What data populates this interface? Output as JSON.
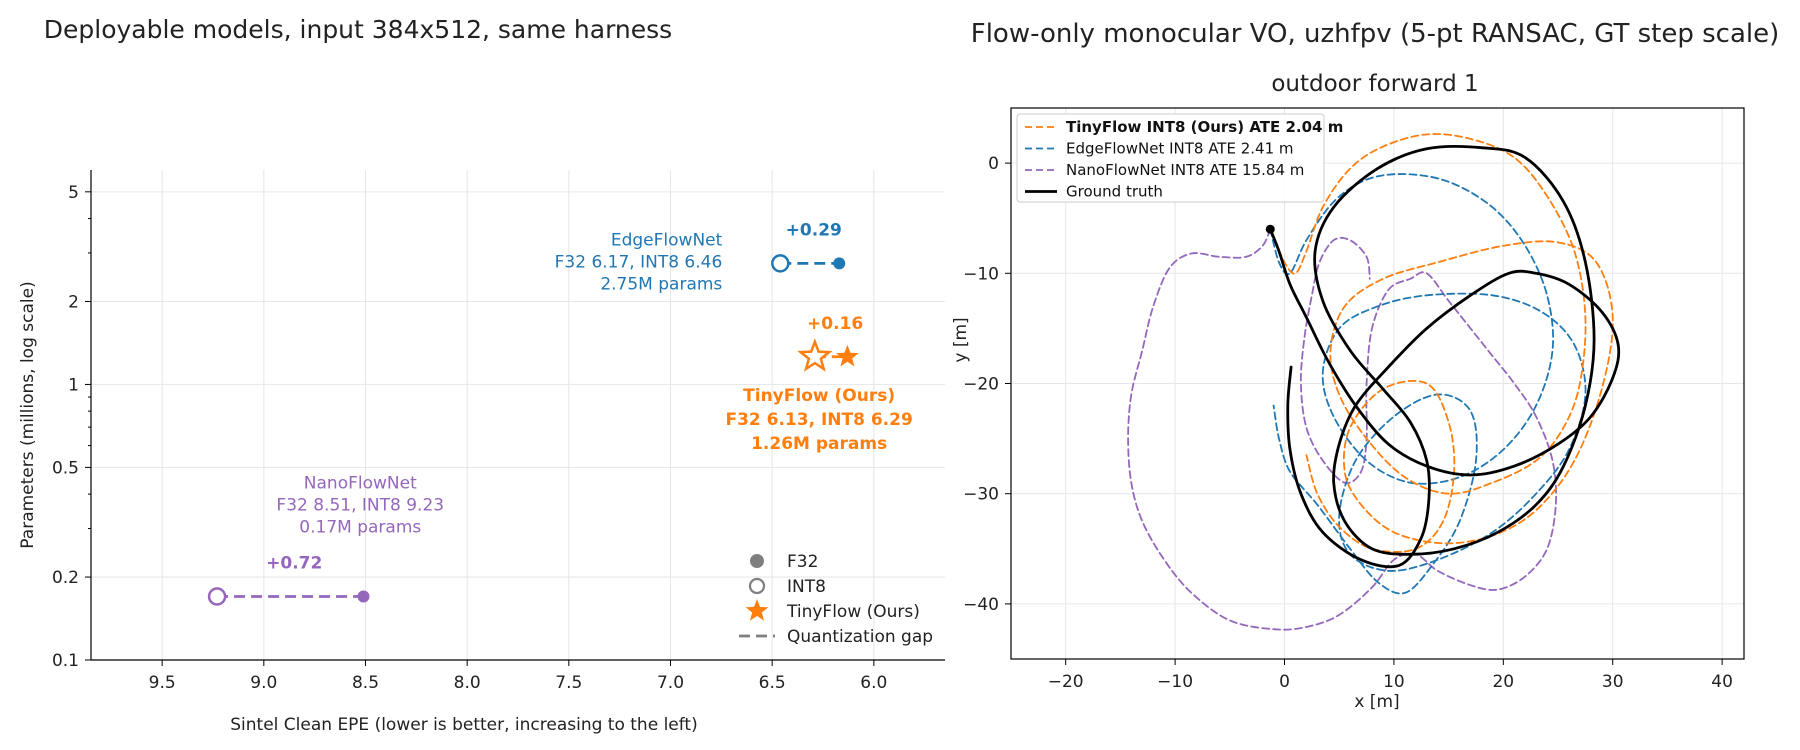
{
  "chart_data": [
    {
      "type": "scatter",
      "title": "Deployable models, input 384x512, same harness",
      "xlabel": "Sintel Clean EPE (lower is better, increasing to the left)",
      "ylabel": "Parameters (millions, log scale)",
      "xlim": [
        9.85,
        5.65
      ],
      "ylim": [
        0.1,
        6.0
      ],
      "yscale": "log",
      "x_inverted": true,
      "grid": true,
      "xticks": [
        9.5,
        9.0,
        8.5,
        8.0,
        7.5,
        7.0,
        6.5,
        6.0
      ],
      "xtick_labels": [
        "9.5",
        "9.0",
        "8.5",
        "8.0",
        "7.5",
        "7.0",
        "6.5",
        "6.0"
      ],
      "yticks": [
        0.1,
        0.2,
        0.5,
        1,
        2,
        5
      ],
      "ytick_labels": [
        "0.1",
        "0.2",
        "0.5",
        "1",
        "2",
        "5"
      ],
      "legend": {
        "position": "lower-right",
        "entries": [
          {
            "label": "F32",
            "marker": "filled-circle",
            "color": "#7f7f7f"
          },
          {
            "label": "INT8",
            "marker": "hollow-circle",
            "color": "#7f7f7f"
          },
          {
            "label": "TinyFlow (Ours)",
            "marker": "star",
            "color": "#ff7f0e"
          },
          {
            "label": "Quantization gap",
            "marker": "dashed-line",
            "color": "#7f7f7f"
          }
        ]
      },
      "models": [
        {
          "name": "EdgeFlowNet",
          "color": "#1f77b4",
          "params_m": 2.75,
          "f32_epe": 6.17,
          "int8_epe": 6.46,
          "gap_label": "+0.29",
          "marker": "circle",
          "bold": false,
          "label_lines": [
            "EdgeFlowNet",
            "F32 6.17, INT8 6.46",
            "2.75M params"
          ]
        },
        {
          "name": "TinyFlow (Ours)",
          "color": "#ff7f0e",
          "params_m": 1.26,
          "f32_epe": 6.13,
          "int8_epe": 6.29,
          "gap_label": "+0.16",
          "marker": "star",
          "bold": true,
          "label_lines": [
            "TinyFlow (Ours)",
            "F32 6.13, INT8 6.29",
            "1.26M params"
          ]
        },
        {
          "name": "NanoFlowNet",
          "color": "#9467bd",
          "params_m": 0.17,
          "f32_epe": 8.51,
          "int8_epe": 9.23,
          "gap_label": "+0.72",
          "marker": "circle",
          "bold": false,
          "label_lines": [
            "NanoFlowNet",
            "F32 8.51, INT8 9.23",
            "0.17M params"
          ]
        }
      ]
    },
    {
      "type": "line",
      "suptitle": "Flow-only monocular VO, uzhfpv (5-pt RANSAC, GT step scale)",
      "title": "outdoor forward 1",
      "xlabel": "x [m]",
      "ylabel": "y [m]",
      "xlim": [
        -25,
        42
      ],
      "ylim": [
        -45,
        5
      ],
      "grid": true,
      "xticks": [
        -20,
        -10,
        0,
        10,
        20,
        30,
        40
      ],
      "xtick_labels": [
        "−20",
        "−10",
        "0",
        "10",
        "20",
        "30",
        "40"
      ],
      "yticks": [
        0,
        -10,
        -20,
        -30,
        -40
      ],
      "ytick_labels": [
        "0",
        "−10",
        "−20",
        "−30",
        "−40"
      ],
      "legend_position": "upper-left",
      "start_marker": [
        -1.3,
        -6
      ],
      "series": [
        {
          "name": "TinyFlow INT8 (Ours) ATE 2.04 m",
          "color": "#ff7f0e",
          "style": "dashed",
          "bold": true,
          "points": [
            [
              -1.3,
              -6
            ],
            [
              0,
              -9
            ],
            [
              1,
              -10
            ],
            [
              2,
              -8
            ],
            [
              3.5,
              -4
            ],
            [
              6,
              -0.5
            ],
            [
              9,
              1.5
            ],
            [
              13,
              2.6
            ],
            [
              17,
              2.2
            ],
            [
              21,
              0.5
            ],
            [
              24,
              -3
            ],
            [
              26.5,
              -8
            ],
            [
              27.5,
              -14
            ],
            [
              27,
              -20
            ],
            [
              25.5,
              -24
            ],
            [
              23,
              -27
            ],
            [
              19,
              -29
            ],
            [
              15,
              -30
            ],
            [
              11,
              -28.5
            ],
            [
              7.5,
              -25
            ],
            [
              5,
              -21
            ],
            [
              4.2,
              -17
            ],
            [
              5.5,
              -13
            ],
            [
              9,
              -10.5
            ],
            [
              14,
              -9
            ],
            [
              20,
              -7.5
            ],
            [
              25,
              -7.2
            ],
            [
              28.5,
              -9
            ],
            [
              30,
              -14
            ],
            [
              29,
              -20.5
            ],
            [
              26.5,
              -27
            ],
            [
              23,
              -31.5
            ],
            [
              19,
              -33.8
            ],
            [
              14.5,
              -34.5
            ],
            [
              10,
              -33.5
            ],
            [
              7,
              -31
            ],
            [
              5.5,
              -28
            ],
            [
              6,
              -24
            ],
            [
              9,
              -20.5
            ],
            [
              13,
              -20
            ],
            [
              15,
              -23.5
            ],
            [
              15.5,
              -28
            ],
            [
              14.5,
              -32.5
            ],
            [
              12,
              -35
            ],
            [
              8,
              -35
            ],
            [
              5,
              -33
            ],
            [
              3,
              -30
            ],
            [
              2,
              -26.5
            ]
          ]
        },
        {
          "name": "EdgeFlowNet INT8 ATE 2.41 m",
          "color": "#1f77b4",
          "style": "dashed",
          "bold": false,
          "points": [
            [
              -1.3,
              -6
            ],
            [
              -0.5,
              -9
            ],
            [
              0.5,
              -10
            ],
            [
              2,
              -7
            ],
            [
              4.5,
              -3.5
            ],
            [
              7.5,
              -1.5
            ],
            [
              11,
              -1
            ],
            [
              15,
              -1.7
            ],
            [
              19,
              -4
            ],
            [
              22,
              -7.5
            ],
            [
              24,
              -12
            ],
            [
              24.5,
              -17
            ],
            [
              23,
              -22
            ],
            [
              20,
              -26
            ],
            [
              16,
              -28.5
            ],
            [
              11.5,
              -29
            ],
            [
              7.5,
              -27
            ],
            [
              4.5,
              -23
            ],
            [
              3.5,
              -19
            ],
            [
              5,
              -15
            ],
            [
              8.5,
              -13
            ],
            [
              13,
              -12
            ],
            [
              19,
              -12
            ],
            [
              23.5,
              -13.5
            ],
            [
              26.5,
              -16.5
            ],
            [
              27.5,
              -21
            ],
            [
              26,
              -26
            ],
            [
              23,
              -30
            ],
            [
              19,
              -33.5
            ],
            [
              14,
              -36
            ],
            [
              9.5,
              -37
            ],
            [
              6,
              -35.5
            ],
            [
              5,
              -32
            ],
            [
              6.5,
              -27
            ],
            [
              10,
              -23
            ],
            [
              14,
              -21
            ],
            [
              17,
              -22.5
            ],
            [
              17.5,
              -27
            ],
            [
              16,
              -32.5
            ],
            [
              13.5,
              -36.5
            ],
            [
              11,
              -39
            ],
            [
              8.5,
              -38
            ],
            [
              6,
              -35
            ],
            [
              3,
              -31
            ],
            [
              0.5,
              -28
            ],
            [
              -0.5,
              -25
            ],
            [
              -1,
              -22
            ]
          ]
        },
        {
          "name": "NanoFlowNet INT8 ATE 15.84 m",
          "color": "#9467bd",
          "style": "dashed",
          "bold": false,
          "points": [
            [
              -1.3,
              -6
            ],
            [
              -2,
              -7.5
            ],
            [
              -3.5,
              -8.5
            ],
            [
              -6,
              -8.5
            ],
            [
              -8.5,
              -8.2
            ],
            [
              -10.5,
              -9.5
            ],
            [
              -12,
              -13
            ],
            [
              -13,
              -17
            ],
            [
              -14,
              -21
            ],
            [
              -14.3,
              -25
            ],
            [
              -14,
              -29
            ],
            [
              -13,
              -32.5
            ],
            [
              -11,
              -36
            ],
            [
              -8.5,
              -39
            ],
            [
              -5,
              -41.5
            ],
            [
              -1,
              -42.3
            ],
            [
              2,
              -42.1
            ],
            [
              5,
              -41
            ],
            [
              8,
              -38.5
            ],
            [
              10,
              -36
            ],
            [
              12,
              -35.5
            ],
            [
              14,
              -37
            ],
            [
              17,
              -38.3
            ],
            [
              19.5,
              -38.7
            ],
            [
              22,
              -37.5
            ],
            [
              24,
              -35
            ],
            [
              24.8,
              -31
            ],
            [
              24.5,
              -27
            ],
            [
              23,
              -23
            ],
            [
              21,
              -20
            ],
            [
              19,
              -17.5
            ],
            [
              17,
              -15
            ],
            [
              15,
              -12.5
            ],
            [
              13,
              -10
            ],
            [
              11.5,
              -10.5
            ],
            [
              9.5,
              -11.5
            ],
            [
              8,
              -15
            ],
            [
              7.5,
              -20
            ],
            [
              7.5,
              -25
            ],
            [
              7,
              -28
            ],
            [
              5.5,
              -29
            ],
            [
              3.5,
              -27
            ],
            [
              2,
              -24
            ],
            [
              1.5,
              -20
            ],
            [
              1.8,
              -16
            ],
            [
              2.5,
              -12
            ],
            [
              3.2,
              -9
            ],
            [
              4.5,
              -7
            ],
            [
              6,
              -7
            ],
            [
              7.5,
              -8.5
            ],
            [
              7.8,
              -10.5
            ]
          ]
        },
        {
          "name": "Ground truth",
          "color": "#000000",
          "style": "solid",
          "bold": false,
          "points": [
            [
              -1.3,
              -6
            ],
            [
              -0.5,
              -8
            ],
            [
              0.5,
              -11
            ],
            [
              2,
              -14
            ],
            [
              4,
              -18
            ],
            [
              6.5,
              -22
            ],
            [
              9.5,
              -25.5
            ],
            [
              13,
              -27.5
            ],
            [
              17,
              -28.3
            ],
            [
              21,
              -27.5
            ],
            [
              25,
              -25.5
            ],
            [
              28,
              -23
            ],
            [
              30,
              -19.5
            ],
            [
              30.5,
              -16.5
            ],
            [
              29,
              -13.5
            ],
            [
              26,
              -11
            ],
            [
              23,
              -10
            ],
            [
              20.5,
              -10
            ],
            [
              17,
              -12
            ],
            [
              13,
              -15
            ],
            [
              9.5,
              -18.5
            ],
            [
              6.5,
              -22
            ],
            [
              5,
              -25.5
            ],
            [
              4.5,
              -29
            ],
            [
              5.5,
              -32.5
            ],
            [
              8,
              -35
            ],
            [
              11.5,
              -35.5
            ],
            [
              15.5,
              -35
            ],
            [
              19.5,
              -33.5
            ],
            [
              23,
              -31
            ],
            [
              25.5,
              -27.5
            ],
            [
              27.5,
              -22
            ],
            [
              28.3,
              -16
            ],
            [
              27.5,
              -9
            ],
            [
              25.5,
              -3.5
            ],
            [
              22,
              0.5
            ],
            [
              18,
              1.4
            ],
            [
              13,
              1.3
            ],
            [
              8.5,
              -0.5
            ],
            [
              4.5,
              -4
            ],
            [
              2.8,
              -8
            ],
            [
              3.5,
              -12.5
            ],
            [
              6,
              -17
            ],
            [
              9,
              -20.5
            ],
            [
              11.5,
              -23.5
            ],
            [
              13,
              -27
            ],
            [
              13.2,
              -30.5
            ],
            [
              12.5,
              -34
            ],
            [
              10.5,
              -36.5
            ],
            [
              7,
              -36
            ],
            [
              3.5,
              -33.5
            ],
            [
              1.5,
              -30
            ],
            [
              0.5,
              -26
            ],
            [
              0.3,
              -22
            ],
            [
              0.6,
              -18.5
            ]
          ]
        }
      ]
    }
  ]
}
